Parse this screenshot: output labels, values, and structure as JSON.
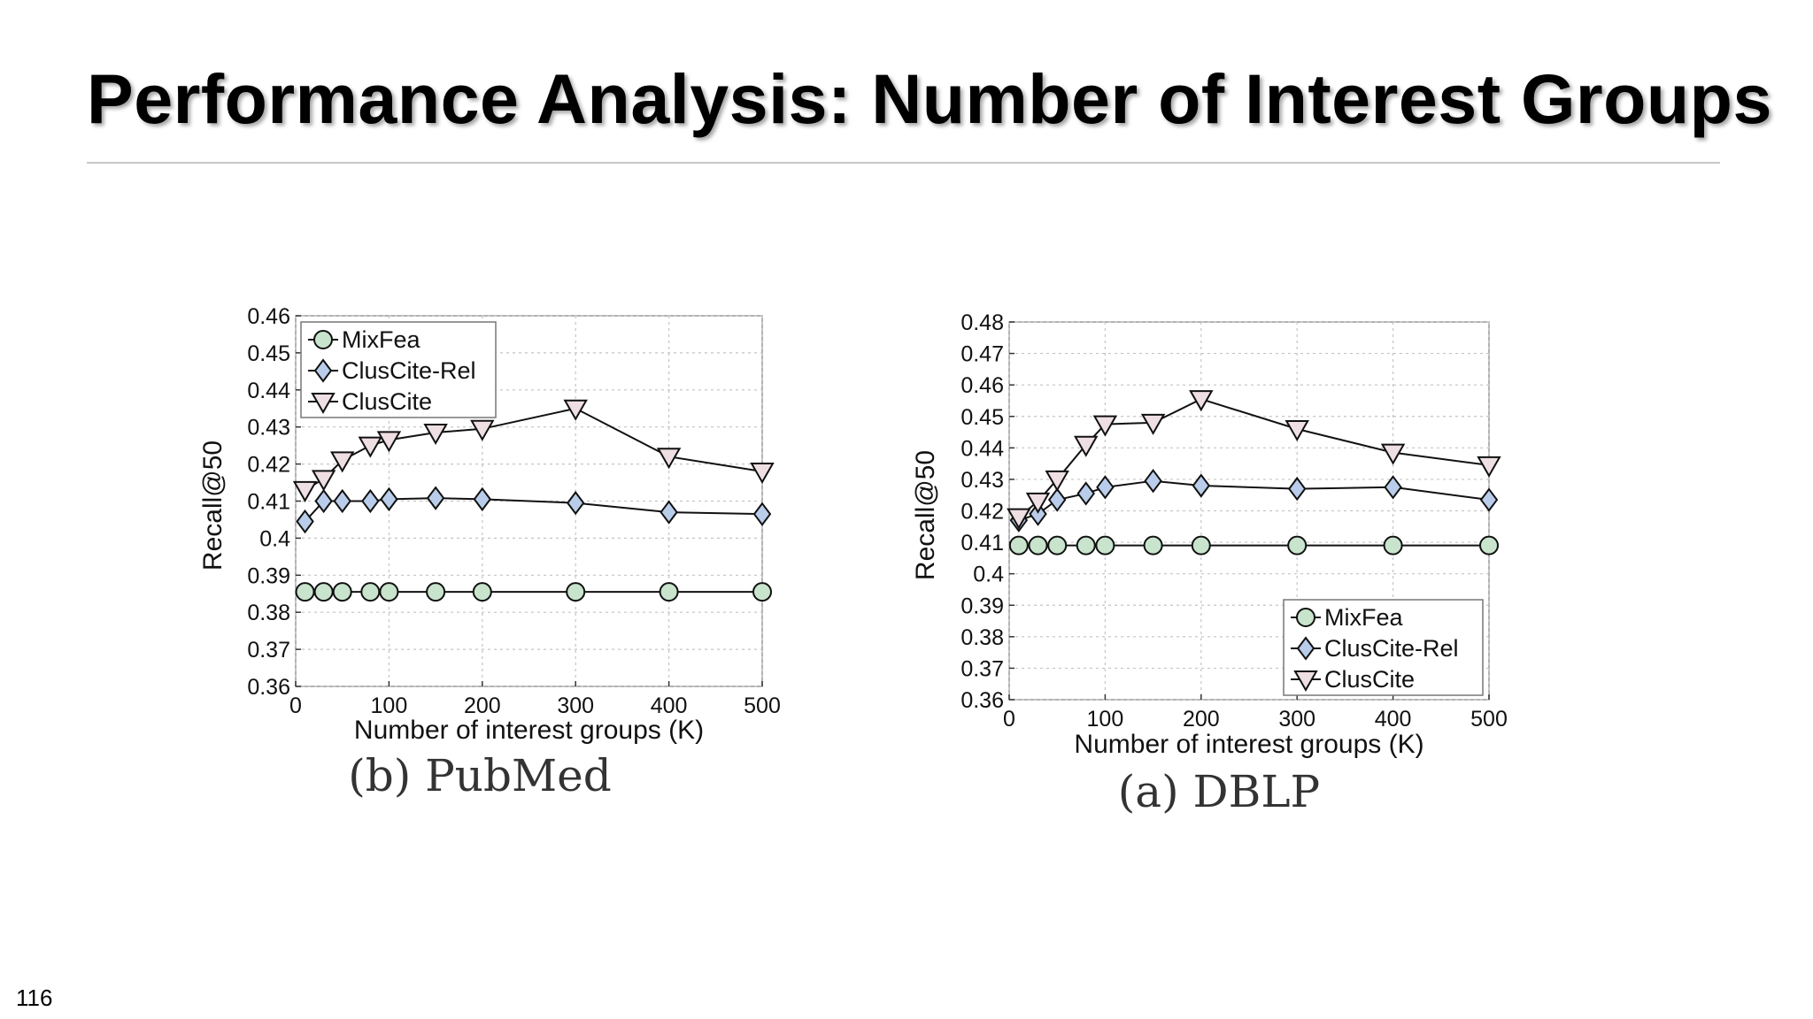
{
  "slide": {
    "title": "Performance Analysis: Number of Interest Groups",
    "page_number": "116"
  },
  "colors": {
    "MixFea": "#c8e4cc",
    "ClusCite-Rel": "#b9cdea",
    "ClusCite": "#eedfe3",
    "line": "#111111",
    "grid": "#c4c4c4"
  },
  "icons": {
    "MixFea": "circle-marker",
    "ClusCite-Rel": "diamond-marker",
    "ClusCite": "down-triangle-marker"
  },
  "chart_data": [
    {
      "type": "line",
      "caption": "(b) PubMed",
      "xlabel": "Number of interest groups (K)",
      "ylabel": "Recall@50",
      "xlim": [
        0,
        500
      ],
      "ylim": [
        0.36,
        0.46
      ],
      "xticks": [
        0,
        100,
        200,
        300,
        400,
        500
      ],
      "yticks": [
        0.36,
        0.37,
        0.38,
        0.39,
        0.4,
        0.41,
        0.42,
        0.43,
        0.44,
        0.45,
        0.46
      ],
      "ytick_labels": [
        "0.36",
        "0.37",
        "0.38",
        "0.39",
        "0.4",
        "0.41",
        "0.42",
        "0.43",
        "0.44",
        "0.45",
        "0.46"
      ],
      "grid": true,
      "legend_position": "top-left",
      "x": [
        10,
        30,
        50,
        80,
        100,
        150,
        200,
        300,
        400,
        500
      ],
      "series": [
        {
          "name": "MixFea",
          "marker": "circle",
          "values": [
            0.3855,
            0.3855,
            0.3855,
            0.3855,
            0.3855,
            0.3855,
            0.3855,
            0.3855,
            0.3855,
            0.3855
          ]
        },
        {
          "name": "ClusCite-Rel",
          "marker": "diamond",
          "values": [
            0.4045,
            0.41,
            0.41,
            0.41,
            0.4105,
            0.4108,
            0.4105,
            0.4095,
            0.407,
            0.4065
          ]
        },
        {
          "name": "ClusCite",
          "marker": "triangle-down",
          "values": [
            0.413,
            0.416,
            0.421,
            0.425,
            0.4265,
            0.4285,
            0.4295,
            0.435,
            0.422,
            0.418
          ]
        }
      ]
    },
    {
      "type": "line",
      "caption": "(a) DBLP",
      "xlabel": "Number of interest groups (K)",
      "ylabel": "Recall@50",
      "xlim": [
        0,
        500
      ],
      "ylim": [
        0.36,
        0.48
      ],
      "xticks": [
        0,
        100,
        200,
        300,
        400,
        500
      ],
      "yticks": [
        0.36,
        0.37,
        0.38,
        0.39,
        0.4,
        0.41,
        0.42,
        0.43,
        0.44,
        0.45,
        0.46,
        0.47,
        0.48
      ],
      "ytick_labels": [
        "0.36",
        "0.37",
        "0.38",
        "0.39",
        "0.4",
        "0.41",
        "0.42",
        "0.43",
        "0.44",
        "0.45",
        "0.46",
        "0.47",
        "0.48"
      ],
      "grid": true,
      "legend_position": "bottom-right",
      "x": [
        10,
        30,
        50,
        80,
        100,
        150,
        200,
        300,
        400,
        500
      ],
      "series": [
        {
          "name": "MixFea",
          "marker": "circle",
          "values": [
            0.409,
            0.409,
            0.409,
            0.409,
            0.409,
            0.409,
            0.409,
            0.409,
            0.409,
            0.409
          ]
        },
        {
          "name": "ClusCite-Rel",
          "marker": "diamond",
          "values": [
            0.417,
            0.419,
            0.4235,
            0.4255,
            0.4275,
            0.4295,
            0.428,
            0.427,
            0.4275,
            0.4235
          ]
        },
        {
          "name": "ClusCite",
          "marker": "triangle-down",
          "values": [
            0.418,
            0.423,
            0.43,
            0.441,
            0.4475,
            0.448,
            0.4555,
            0.446,
            0.4385,
            0.4345
          ]
        }
      ]
    }
  ]
}
